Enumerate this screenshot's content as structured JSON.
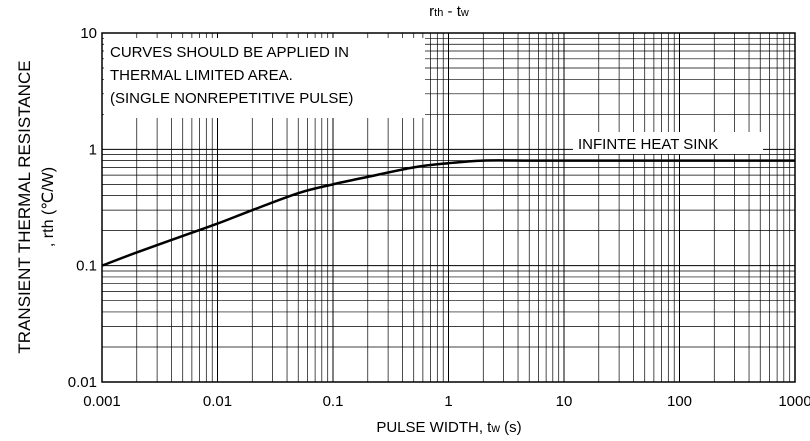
{
  "chart_data": {
    "type": "line",
    "title_main": "r",
    "title_sub": "th",
    "title_sep": " - t",
    "title_sub2": "w",
    "ylabel_line1": "TRANSIENT THERMAL RESISTANCE",
    "ylabel_line2": ", rth (℃/W)",
    "xlabel_main": "PULSE WIDTH, t",
    "xlabel_sub": "w",
    "xlabel_unit": " (s)",
    "x_scale": "log",
    "y_scale": "log",
    "xlim": [
      0.001,
      1000
    ],
    "ylim": [
      0.01,
      10
    ],
    "grid": true,
    "x_ticks": [
      {
        "value": 0.001,
        "label": "0.001"
      },
      {
        "value": 0.01,
        "label": "0.01"
      },
      {
        "value": 0.1,
        "label": "0.1"
      },
      {
        "value": 1,
        "label": "1"
      },
      {
        "value": 10,
        "label": "10"
      },
      {
        "value": 100,
        "label": "100"
      },
      {
        "value": 1000,
        "label": "1000"
      }
    ],
    "y_ticks": [
      {
        "value": 0.01,
        "label": "0.01"
      },
      {
        "value": 0.1,
        "label": "0.1"
      },
      {
        "value": 1,
        "label": "1"
      },
      {
        "value": 10,
        "label": "10"
      }
    ],
    "note_lines": [
      "CURVES SHOULD BE APPLIED IN",
      "THERMAL LIMITED AREA.",
      "(SINGLE NONREPETITIVE PULSE)"
    ],
    "curve_label": "INFINTE HEAT SINK",
    "series": [
      {
        "x": [
          0.001,
          0.002,
          0.005,
          0.01,
          0.02,
          0.05,
          0.1,
          0.2,
          0.5,
          1,
          2,
          5,
          10,
          100,
          1000
        ],
        "y": [
          0.1,
          0.13,
          0.18,
          0.23,
          0.3,
          0.42,
          0.5,
          0.58,
          0.7,
          0.76,
          0.8,
          0.8,
          0.8,
          0.8,
          0.8
        ]
      }
    ]
  }
}
